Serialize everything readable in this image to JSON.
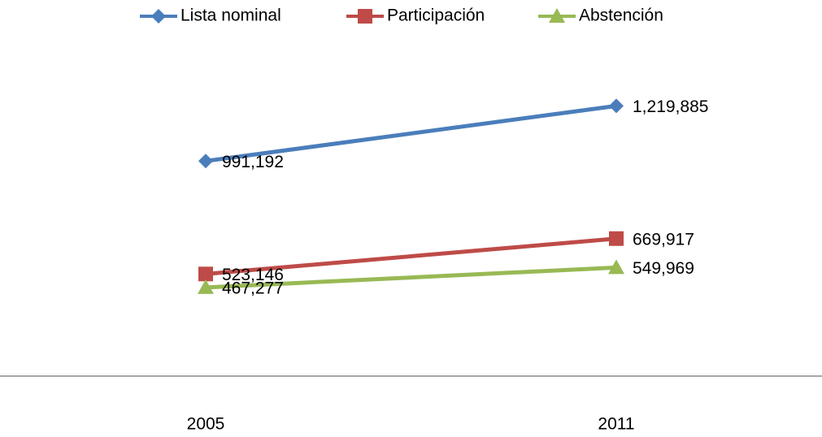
{
  "chart_data": {
    "type": "line",
    "categories": [
      "2005",
      "2011"
    ],
    "series": [
      {
        "name": "Lista nominal",
        "color": "#4a7ebb",
        "marker": "diamond",
        "values": [
          991192,
          1219885
        ],
        "value_labels": [
          "991,192",
          "1,219,885"
        ]
      },
      {
        "name": "Participación",
        "color": "#be4b48",
        "marker": "square",
        "values": [
          523146,
          669917
        ],
        "value_labels": [
          "523,146",
          "669,917"
        ]
      },
      {
        "name": "Abstención",
        "color": "#98b954",
        "marker": "triangle",
        "values": [
          467277,
          549969
        ],
        "value_labels": [
          "467,277",
          "549,969"
        ]
      }
    ],
    "ylim": [
      100000,
      1450000
    ],
    "legend": "top"
  }
}
